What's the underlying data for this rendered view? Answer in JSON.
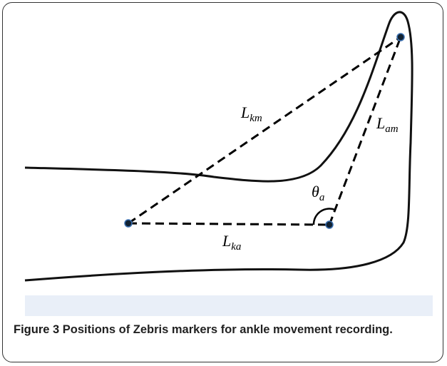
{
  "figure": {
    "labels": [
      {
        "main": "L",
        "sub": "km"
      },
      {
        "main": "L",
        "sub": "am"
      },
      {
        "main": "θ",
        "sub": "a"
      },
      {
        "main": "L",
        "sub": "ka"
      }
    ],
    "caption_label": "Figure 3",
    "caption_text": "Positions of Zebris markers for ankle movement recording."
  }
}
